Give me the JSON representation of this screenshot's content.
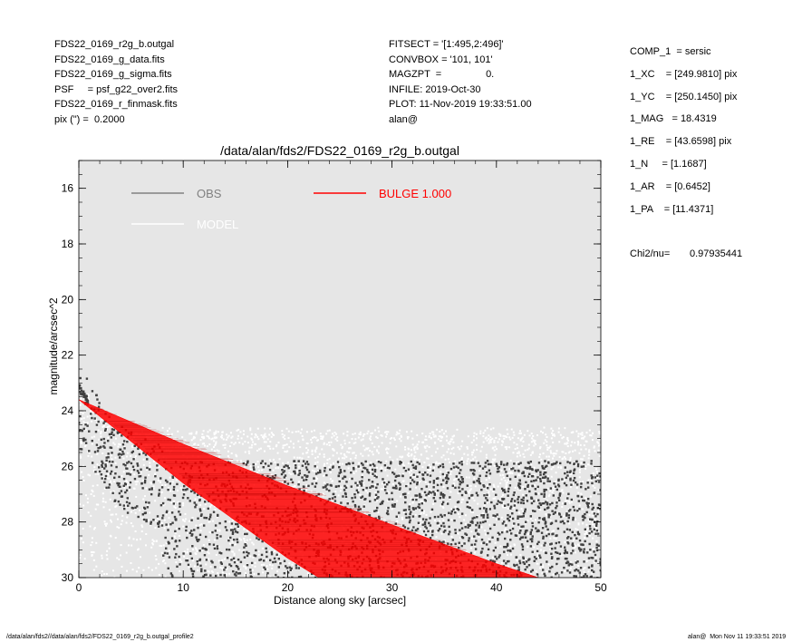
{
  "header_left": [
    "FDS22_0169_r2g_b.outgal",
    "FDS22_0169_g_data.fits",
    "FDS22_0169_g_sigma.fits",
    "PSF     = psf_g22_over2.fits",
    "FDS22_0169_r_finmask.fits",
    "pix (\") =  0.2000"
  ],
  "header_mid": [
    "FITSECT = '[1:495,2:496]'",
    "CONVBOX = '101, 101'",
    "MAGZPT  =                0.",
    "INFILE: 2019-Oct-30",
    "PLOT: 11-Nov-2019 19:33:51.00",
    "alan@"
  ],
  "params": [
    "COMP_1  = sersic",
    "1_XC    = [249.9810] pix",
    "1_YC    = [250.1450] pix",
    "1_MAG   = 18.4319",
    "1_RE    = [43.6598] pix",
    "1_N     = [1.1687]",
    "1_AR    = [0.6452]",
    "1_PA    = [11.4371]"
  ],
  "chi2_label": "Chi2/nu=",
  "chi2_value": "0.97935441",
  "footer_left": "/data/alan/fds2//data/alan/fds2/FDS22_0169_r2g_b.outgal_profile2",
  "footer_right": "alan@  Mon Nov 11 19:33:51 2019",
  "colors": {
    "plot_bg": "#e6e6e6",
    "obs": "#808080",
    "model": "#ffffff",
    "bulge": "#ff0000",
    "obs_points": "#404040"
  },
  "chart_data": {
    "type": "scatter",
    "title": "/data/alan/fds2/FDS22_0169_r2g_b.outgal",
    "xlabel": "Distance along sky [arcsec]",
    "ylabel": "magnitude/arcsec^2",
    "xlim": [
      0,
      50
    ],
    "ylim": [
      30,
      15
    ],
    "x_ticks": [
      0,
      10,
      20,
      30,
      40,
      50
    ],
    "y_ticks": [
      16,
      18,
      20,
      22,
      24,
      26,
      28,
      30
    ],
    "legend": [
      {
        "label": "OBS",
        "color": "#808080"
      },
      {
        "label": "BULGE  1.000",
        "color": "#ff0000"
      },
      {
        "label": "MODEL",
        "color": "#ffffff"
      }
    ],
    "legend_position": "top",
    "series": [
      {
        "name": "OBS",
        "description_points": [
          [
            0.1,
            23.1
          ],
          [
            0.3,
            23.3
          ],
          [
            0.6,
            23.5
          ],
          [
            1,
            24.0
          ],
          [
            2,
            24.6
          ],
          [
            4,
            25.6
          ],
          [
            6,
            26.3
          ],
          [
            8,
            26.8
          ],
          [
            10,
            27.2
          ],
          [
            14,
            27.6
          ],
          [
            20,
            28.0
          ],
          [
            30,
            28.4
          ],
          [
            40,
            28.6
          ],
          [
            50,
            28.7
          ]
        ]
      },
      {
        "name": "BULGE  1.000",
        "upper_edge": [
          [
            0,
            23.6
          ],
          [
            10,
            25.2
          ],
          [
            20,
            26.7
          ],
          [
            30,
            28.1
          ],
          [
            40,
            29.5
          ],
          [
            44,
            30.0
          ]
        ],
        "lower_edge": [
          [
            0,
            23.6
          ],
          [
            10,
            26.6
          ],
          [
            20,
            29.3
          ],
          [
            23,
            30.0
          ]
        ]
      }
    ]
  }
}
